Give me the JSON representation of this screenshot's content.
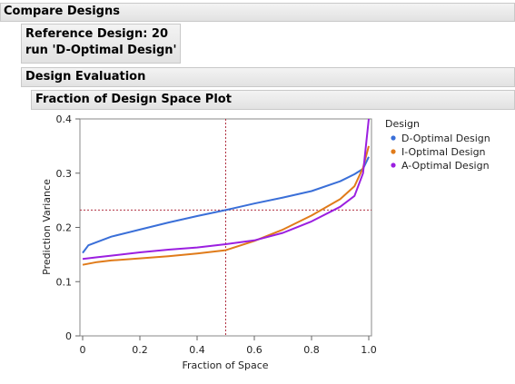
{
  "headers": {
    "compare": "Compare Designs",
    "reference_line1": "Reference Design: 20",
    "reference_line2": "run 'D-Optimal Design'",
    "design_evaluation": "Design Evaluation",
    "fraction_plot": "Fraction of Design Space Plot"
  },
  "chart_data": {
    "type": "line",
    "xlabel": "Fraction of Space",
    "ylabel": "Prediction Variance",
    "xlim": [
      0,
      1
    ],
    "ylim": [
      0,
      0.4
    ],
    "x_ticks": [
      "0",
      "0.2",
      "0.4",
      "0.6",
      "0.8",
      "1.0"
    ],
    "x_tick_values": [
      0,
      0.2,
      0.4,
      0.6,
      0.8,
      1.0
    ],
    "y_ticks": [
      "0",
      "0.1",
      "0.2",
      "0.3",
      "0.4"
    ],
    "y_tick_values": [
      0,
      0.1,
      0.2,
      0.3,
      0.4
    ],
    "legend_title": "Design",
    "legend_position": "right",
    "reference_lines": {
      "x": 0.5,
      "y": 0.232,
      "color": "#b03040"
    },
    "series": [
      {
        "name": "D-Optimal Design",
        "color": "#3a6fd8",
        "x": [
          0,
          0.02,
          0.1,
          0.2,
          0.3,
          0.4,
          0.5,
          0.6,
          0.7,
          0.8,
          0.9,
          0.95,
          0.98,
          1.0
        ],
        "y": [
          0.153,
          0.167,
          0.183,
          0.196,
          0.209,
          0.221,
          0.232,
          0.244,
          0.255,
          0.267,
          0.285,
          0.298,
          0.308,
          0.33
        ]
      },
      {
        "name": "I-Optimal Design",
        "color": "#e07b1a",
        "x": [
          0,
          0.05,
          0.1,
          0.2,
          0.3,
          0.4,
          0.5,
          0.6,
          0.7,
          0.8,
          0.9,
          0.95,
          0.98,
          1.0
        ],
        "y": [
          0.131,
          0.136,
          0.139,
          0.143,
          0.147,
          0.152,
          0.158,
          0.175,
          0.196,
          0.222,
          0.252,
          0.276,
          0.31,
          0.35
        ]
      },
      {
        "name": "A-Optimal Design",
        "color": "#9b1fe0",
        "x": [
          0,
          0.05,
          0.1,
          0.2,
          0.3,
          0.4,
          0.5,
          0.6,
          0.7,
          0.8,
          0.9,
          0.95,
          0.98,
          1.0
        ],
        "y": [
          0.142,
          0.145,
          0.148,
          0.154,
          0.159,
          0.163,
          0.169,
          0.176,
          0.19,
          0.211,
          0.238,
          0.258,
          0.3,
          0.4
        ]
      }
    ]
  }
}
